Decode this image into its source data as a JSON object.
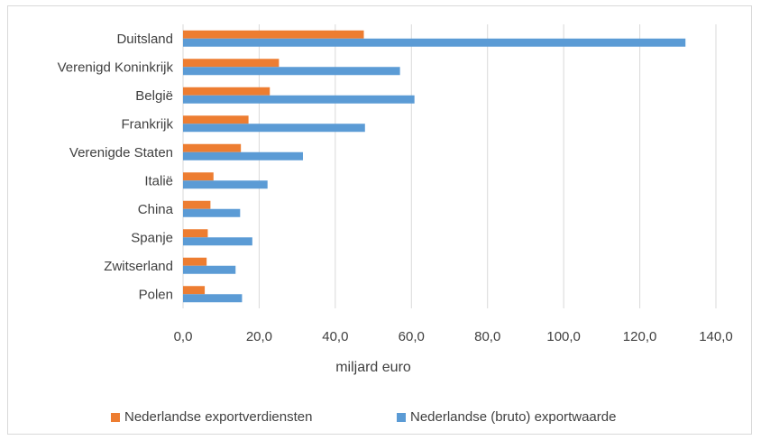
{
  "chart_data": {
    "type": "bar",
    "orientation": "horizontal",
    "categories": [
      "Duitsland",
      "Verenigd Koninkrijk",
      "België",
      "Frankrijk",
      "Verenigde Staten",
      "Italië",
      "China",
      "Spanje",
      "Zwitserland",
      "Polen"
    ],
    "series": [
      {
        "name": "Nederlandse exportverdiensten",
        "color": "#ed7d31",
        "values": [
          47.5,
          25.2,
          22.8,
          17.2,
          15.2,
          8.0,
          7.2,
          6.5,
          6.2,
          5.7
        ]
      },
      {
        "name": "Nederlandse (bruto) exportwaarde",
        "color": "#5b9bd5",
        "values": [
          132.0,
          57.0,
          60.8,
          47.8,
          31.5,
          22.2,
          15.0,
          18.2,
          13.8,
          15.5
        ]
      }
    ],
    "xlabel": "miljard euro",
    "xlim": [
      0,
      140
    ],
    "xticks": [
      "0,0",
      "20,0",
      "40,0",
      "60,0",
      "80,0",
      "100,0",
      "120,0",
      "140,0"
    ],
    "grid": true,
    "legend_position": "bottom"
  }
}
